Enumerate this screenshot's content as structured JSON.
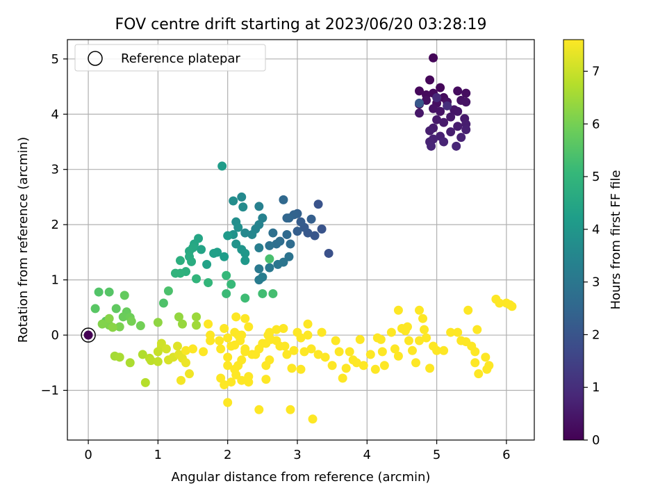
{
  "chart_data": {
    "type": "scatter",
    "title": "FOV centre drift starting at 2023/06/20 03:28:19",
    "xlabel": "Angular distance from reference (arcmin)",
    "ylabel": "Rotation from reference (arcmin)",
    "xlim": [
      -0.3,
      6.4
    ],
    "ylim": [
      -1.9,
      5.35
    ],
    "xticks": [
      0,
      1,
      2,
      3,
      4,
      5,
      6
    ],
    "yticks": [
      -1,
      0,
      1,
      2,
      3,
      4,
      5
    ],
    "xtick_labels": [
      "0",
      "1",
      "2",
      "3",
      "4",
      "5",
      "6"
    ],
    "ytick_labels": [
      "−1",
      "0",
      "1",
      "2",
      "3",
      "4",
      "5"
    ],
    "grid": true,
    "legend": {
      "location": "upper left",
      "entries": [
        "Reference platepar"
      ]
    },
    "reference_point": {
      "name": "Reference platepar",
      "x": 0,
      "y": 0
    },
    "colorbar": {
      "label": "Hours from first FF file",
      "colormap": "viridis",
      "range": [
        0,
        7.6
      ],
      "ticks": [
        0,
        1,
        2,
        3,
        4,
        5,
        6,
        7
      ],
      "tick_labels": [
        "0",
        "1",
        "2",
        "3",
        "4",
        "5",
        "6",
        "7"
      ]
    },
    "colors": {
      "viridis": [
        "#440154",
        "#482878",
        "#3e4989",
        "#31688e",
        "#26828e",
        "#1f9e89",
        "#35b779",
        "#6ece58",
        "#b5de2b",
        "#fde725"
      ],
      "grid": "#b0b0b0"
    },
    "points": [
      [
        4.95,
        5.02,
        0.1
      ],
      [
        4.9,
        4.62,
        0.12
      ],
      [
        5.05,
        4.48,
        0.14
      ],
      [
        4.75,
        4.42,
        0.16
      ],
      [
        4.85,
        4.35,
        0.18
      ],
      [
        4.95,
        4.38,
        0.2
      ],
      [
        5.1,
        4.3,
        0.22
      ],
      [
        5.3,
        4.42,
        0.24
      ],
      [
        5.42,
        4.38,
        0.26
      ],
      [
        4.85,
        4.25,
        0.28
      ],
      [
        4.75,
        4.18,
        0.3
      ],
      [
        5.0,
        4.2,
        0.32
      ],
      [
        5.15,
        4.22,
        0.34
      ],
      [
        5.35,
        4.25,
        0.36
      ],
      [
        5.42,
        4.22,
        0.38
      ],
      [
        4.95,
        4.1,
        0.4
      ],
      [
        5.05,
        4.05,
        0.42
      ],
      [
        5.25,
        4.08,
        0.44
      ],
      [
        5.3,
        4.05,
        0.46
      ],
      [
        4.75,
        4.02,
        0.48
      ],
      [
        5.2,
        3.95,
        0.5
      ],
      [
        5.4,
        3.92,
        0.52
      ],
      [
        5.0,
        3.9,
        0.54
      ],
      [
        5.1,
        3.85,
        0.56
      ],
      [
        4.95,
        3.75,
        0.58
      ],
      [
        5.3,
        3.78,
        0.6
      ],
      [
        5.42,
        3.82,
        0.62
      ],
      [
        4.9,
        3.7,
        0.64
      ],
      [
        5.2,
        3.68,
        0.66
      ],
      [
        5.42,
        3.72,
        0.68
      ],
      [
        5.05,
        3.6,
        0.7
      ],
      [
        4.95,
        3.55,
        0.72
      ],
      [
        5.35,
        3.58,
        0.74
      ],
      [
        4.9,
        3.5,
        0.76
      ],
      [
        5.1,
        3.5,
        0.78
      ],
      [
        4.92,
        3.42,
        0.8
      ],
      [
        5.28,
        3.42,
        0.82
      ],
      [
        4.75,
        4.2,
        2.1
      ],
      [
        5.0,
        4.3,
        0.9
      ],
      [
        5.15,
        4.15,
        1.0
      ],
      [
        3.45,
        1.48,
        1.9
      ],
      [
        3.3,
        2.37,
        1.95
      ],
      [
        3.35,
        1.92,
        2.0
      ],
      [
        3.25,
        1.8,
        2.05
      ],
      [
        3.15,
        1.85,
        2.1
      ],
      [
        3.1,
        1.95,
        2.15
      ],
      [
        3.05,
        2.05,
        2.2
      ],
      [
        3.0,
        1.88,
        2.25
      ],
      [
        3.2,
        2.1,
        2.3
      ],
      [
        3.0,
        2.2,
        2.35
      ],
      [
        2.95,
        2.18,
        2.4
      ],
      [
        2.88,
        2.12,
        2.45
      ],
      [
        2.85,
        2.12,
        2.5
      ],
      [
        2.8,
        2.45,
        2.55
      ],
      [
        2.85,
        1.82,
        2.6
      ],
      [
        2.9,
        1.65,
        2.65
      ],
      [
        2.75,
        1.7,
        2.7
      ],
      [
        2.7,
        1.65,
        2.75
      ],
      [
        2.65,
        1.85,
        2.8
      ],
      [
        2.6,
        1.62,
        2.85
      ],
      [
        2.88,
        1.42,
        2.9
      ],
      [
        2.8,
        1.32,
        2.95
      ],
      [
        2.72,
        1.28,
        3.0
      ],
      [
        2.6,
        1.22,
        3.05
      ],
      [
        2.45,
        1.2,
        3.1
      ],
      [
        2.45,
        1.0,
        3.15
      ],
      [
        2.5,
        1.05,
        3.2
      ],
      [
        2.45,
        1.58,
        3.25
      ],
      [
        2.45,
        2.33,
        3.3
      ],
      [
        2.5,
        2.12,
        3.35
      ],
      [
        2.45,
        2.0,
        3.4
      ],
      [
        2.4,
        1.92,
        3.45
      ],
      [
        2.35,
        1.82,
        3.5
      ],
      [
        2.25,
        1.85,
        3.55
      ],
      [
        2.2,
        2.5,
        3.6
      ],
      [
        2.22,
        2.32,
        3.65
      ],
      [
        2.08,
        2.43,
        3.7
      ],
      [
        2.12,
        2.05,
        3.75
      ],
      [
        2.15,
        1.95,
        3.8
      ],
      [
        2.08,
        1.82,
        3.85
      ],
      [
        2.12,
        1.65,
        3.9
      ],
      [
        2.2,
        1.55,
        3.95
      ],
      [
        2.25,
        1.48,
        4.0
      ],
      [
        2.25,
        1.35,
        4.05
      ],
      [
        2.0,
        1.8,
        4.1
      ],
      [
        1.92,
        3.06,
        4.15
      ],
      [
        1.95,
        1.42,
        4.2
      ],
      [
        1.85,
        1.5,
        4.25
      ],
      [
        1.8,
        1.48,
        4.3
      ],
      [
        1.7,
        1.28,
        4.35
      ],
      [
        1.62,
        1.55,
        4.4
      ],
      [
        1.58,
        1.75,
        4.45
      ],
      [
        1.52,
        1.65,
        4.5
      ],
      [
        1.5,
        1.58,
        4.55
      ],
      [
        1.45,
        1.52,
        4.6
      ],
      [
        1.45,
        1.42,
        4.65
      ],
      [
        1.48,
        1.33,
        4.7
      ],
      [
        1.32,
        1.35,
        4.75
      ],
      [
        1.4,
        1.15,
        4.8
      ],
      [
        1.32,
        1.12,
        4.85
      ],
      [
        1.25,
        1.12,
        4.9
      ],
      [
        1.55,
        1.02,
        4.95
      ],
      [
        1.72,
        0.95,
        5.0
      ],
      [
        1.98,
        1.08,
        5.05
      ],
      [
        2.05,
        0.92,
        5.1
      ],
      [
        1.98,
        0.75,
        5.15
      ],
      [
        2.25,
        0.67,
        5.2
      ],
      [
        2.5,
        0.75,
        5.25
      ],
      [
        2.65,
        0.75,
        5.3
      ],
      [
        2.6,
        1.38,
        5.35
      ],
      [
        1.15,
        0.8,
        5.4
      ],
      [
        1.08,
        0.58,
        5.45
      ],
      [
        0.15,
        0.78,
        5.5
      ],
      [
        0.3,
        0.78,
        5.55
      ],
      [
        0.1,
        0.48,
        5.6
      ],
      [
        0.25,
        0.25,
        5.65
      ],
      [
        0.4,
        0.48,
        5.7
      ],
      [
        0.52,
        0.72,
        5.75
      ],
      [
        0.55,
        0.42,
        5.8
      ],
      [
        0.5,
        0.33,
        5.85
      ],
      [
        0.6,
        0.32,
        5.9
      ],
      [
        0.75,
        0.17,
        5.95
      ],
      [
        0.62,
        0.25,
        6.0
      ],
      [
        0.45,
        0.15,
        6.05
      ],
      [
        0.3,
        0.18,
        6.1
      ],
      [
        0.2,
        0.2,
        6.15
      ],
      [
        0.3,
        0.3,
        6.2
      ],
      [
        0.35,
        0.14,
        6.25
      ],
      [
        1.0,
        0.23,
        6.3
      ],
      [
        1.3,
        0.33,
        6.35
      ],
      [
        1.35,
        0.2,
        6.4
      ],
      [
        1.55,
        0.33,
        6.45
      ],
      [
        1.55,
        0.18,
        6.5
      ],
      [
        0.38,
        -0.38,
        6.55
      ],
      [
        0.45,
        -0.4,
        6.6
      ],
      [
        0.6,
        -0.5,
        6.65
      ],
      [
        0.78,
        -0.35,
        6.7
      ],
      [
        0.82,
        -0.86,
        6.75
      ],
      [
        0.88,
        -0.42,
        6.8
      ],
      [
        0.9,
        -0.46,
        6.85
      ],
      [
        1.0,
        -0.48,
        6.9
      ],
      [
        1.0,
        -0.3,
        6.95
      ],
      [
        1.05,
        -0.2,
        7.0
      ],
      [
        1.05,
        -0.15,
        7.05
      ],
      [
        1.12,
        -0.25,
        7.1
      ],
      [
        1.15,
        -0.45,
        7.15
      ],
      [
        1.22,
        -0.4,
        7.2
      ],
      [
        1.28,
        -0.2,
        7.25
      ],
      [
        1.3,
        -0.35,
        7.3
      ],
      [
        1.35,
        -0.42,
        7.35
      ],
      [
        1.4,
        -0.5,
        7.4
      ],
      [
        1.45,
        -0.7,
        7.45
      ],
      [
        1.33,
        -0.82,
        7.5
      ],
      [
        1.4,
        -0.28,
        7.55
      ],
      [
        1.5,
        -0.25,
        7.6
      ],
      [
        1.65,
        -0.3,
        7.65
      ],
      [
        1.75,
        -0.1,
        7.7
      ],
      [
        1.72,
        0.2,
        7.75
      ],
      [
        1.75,
        0.0,
        7.8
      ],
      [
        1.88,
        -0.1,
        7.85
      ],
      [
        1.9,
        -0.25,
        7.9
      ],
      [
        1.95,
        0.12,
        7.95
      ],
      [
        2.0,
        -0.05,
        8.0
      ],
      [
        2.05,
        -0.2,
        8.05
      ],
      [
        2.0,
        -0.4,
        8.1
      ],
      [
        2.0,
        -0.55,
        8.15
      ],
      [
        1.9,
        -0.78,
        8.2
      ],
      [
        1.95,
        -0.9,
        8.25
      ],
      [
        2.05,
        -0.85,
        8.3
      ],
      [
        2.0,
        -1.22,
        8.35
      ],
      [
        2.1,
        -0.62,
        8.4
      ],
      [
        2.12,
        -0.72,
        8.45
      ],
      [
        2.15,
        -0.55,
        8.5
      ],
      [
        2.2,
        -0.45,
        8.55
      ],
      [
        2.25,
        -0.3,
        8.6
      ],
      [
        2.3,
        -0.75,
        8.65
      ],
      [
        2.3,
        -0.85,
        8.7
      ],
      [
        2.2,
        -0.82,
        8.75
      ],
      [
        2.15,
        0.0,
        8.8
      ],
      [
        2.2,
        0.0,
        8.85
      ],
      [
        2.1,
        0.05,
        8.9
      ],
      [
        2.18,
        -0.1,
        8.95
      ],
      [
        2.1,
        -0.18,
        9.0
      ],
      [
        2.12,
        0.33,
        9.05
      ],
      [
        2.25,
        0.3,
        9.1
      ],
      [
        2.3,
        0.15,
        9.15
      ],
      [
        2.25,
        -0.25,
        9.2
      ],
      [
        2.35,
        -0.35,
        9.25
      ],
      [
        2.4,
        -0.35,
        9.3
      ],
      [
        2.45,
        -0.25,
        9.35
      ],
      [
        2.5,
        -0.15,
        9.4
      ],
      [
        2.45,
        -1.35,
        9.45
      ],
      [
        2.55,
        -0.8,
        9.5
      ],
      [
        2.55,
        -0.55,
        9.55
      ],
      [
        2.6,
        -0.45,
        9.6
      ],
      [
        2.55,
        -0.15,
        9.65
      ],
      [
        2.58,
        0.0,
        9.7
      ],
      [
        2.6,
        0.05,
        9.75
      ],
      [
        2.62,
        -0.08,
        9.8
      ],
      [
        2.7,
        0.1,
        9.85
      ],
      [
        2.7,
        -0.1,
        9.9
      ],
      [
        2.75,
        -0.2,
        9.95
      ],
      [
        2.8,
        0.12,
        10.0
      ],
      [
        2.82,
        -0.2,
        10.05
      ],
      [
        2.85,
        -0.35,
        10.1
      ],
      [
        2.9,
        -1.35,
        10.15
      ],
      [
        2.92,
        -0.6,
        10.2
      ],
      [
        2.95,
        -0.28,
        10.25
      ],
      [
        3.0,
        0.05,
        10.3
      ],
      [
        3.05,
        -0.05,
        10.35
      ],
      [
        3.05,
        -0.62,
        10.4
      ],
      [
        3.1,
        -0.3,
        10.45
      ],
      [
        3.15,
        0.2,
        10.5
      ],
      [
        3.15,
        0.0,
        10.55
      ],
      [
        3.2,
        -0.25,
        10.6
      ],
      [
        3.22,
        -1.52,
        10.65
      ],
      [
        3.3,
        -0.35,
        10.7
      ],
      [
        3.35,
        0.05,
        10.75
      ],
      [
        3.4,
        -0.4,
        10.8
      ],
      [
        3.5,
        -0.55,
        10.85
      ],
      [
        3.55,
        -0.1,
        10.9
      ],
      [
        3.6,
        -0.3,
        10.95
      ],
      [
        3.65,
        -0.78,
        11.0
      ],
      [
        3.7,
        -0.6,
        11.05
      ],
      [
        3.75,
        -0.3,
        11.1
      ],
      [
        3.8,
        -0.45,
        11.15
      ],
      [
        3.85,
        -0.5,
        11.2
      ],
      [
        3.9,
        -0.08,
        11.25
      ],
      [
        3.95,
        -0.55,
        11.3
      ],
      [
        4.05,
        -0.35,
        11.35
      ],
      [
        4.12,
        -0.62,
        11.4
      ],
      [
        4.15,
        -0.05,
        11.45
      ],
      [
        4.2,
        -0.08,
        11.5
      ],
      [
        4.22,
        -0.3,
        11.55
      ],
      [
        4.25,
        -0.55,
        11.6
      ],
      [
        4.35,
        0.05,
        11.65
      ],
      [
        4.4,
        -0.25,
        11.7
      ],
      [
        4.45,
        -0.38,
        11.75
      ],
      [
        4.45,
        0.45,
        11.8
      ],
      [
        4.5,
        0.12,
        11.85
      ],
      [
        4.55,
        0.08,
        11.9
      ],
      [
        4.58,
        0.15,
        11.95
      ],
      [
        4.6,
        -0.1,
        12.0
      ],
      [
        4.65,
        -0.28,
        12.05
      ],
      [
        4.7,
        -0.5,
        12.1
      ],
      [
        4.75,
        -0.1,
        12.15
      ],
      [
        4.75,
        0.45,
        12.2
      ],
      [
        4.8,
        0.3,
        12.25
      ],
      [
        4.82,
        0.1,
        12.3
      ],
      [
        4.85,
        -0.05,
        12.35
      ],
      [
        4.9,
        -0.6,
        12.4
      ],
      [
        4.95,
        -0.2,
        12.45
      ],
      [
        5.0,
        -0.28,
        12.5
      ],
      [
        5.1,
        -0.28,
        12.55
      ],
      [
        5.2,
        0.05,
        12.6
      ],
      [
        5.3,
        0.05,
        12.65
      ],
      [
        5.35,
        -0.1,
        12.7
      ],
      [
        5.42,
        -0.12,
        12.75
      ],
      [
        5.45,
        0.45,
        12.8
      ],
      [
        5.5,
        -0.2,
        12.85
      ],
      [
        5.55,
        -0.3,
        12.9
      ],
      [
        5.55,
        -0.5,
        12.95
      ],
      [
        5.58,
        0.1,
        13.0
      ],
      [
        5.6,
        -0.7,
        13.05
      ],
      [
        5.7,
        -0.4,
        13.1
      ],
      [
        5.75,
        -0.55,
        13.15
      ],
      [
        5.72,
        -0.62,
        13.2
      ],
      [
        5.85,
        0.65,
        13.25
      ],
      [
        5.9,
        0.58,
        13.3
      ],
      [
        6.0,
        0.58,
        13.35
      ],
      [
        6.05,
        0.55,
        13.4
      ],
      [
        6.08,
        0.52,
        13.45
      ]
    ]
  }
}
